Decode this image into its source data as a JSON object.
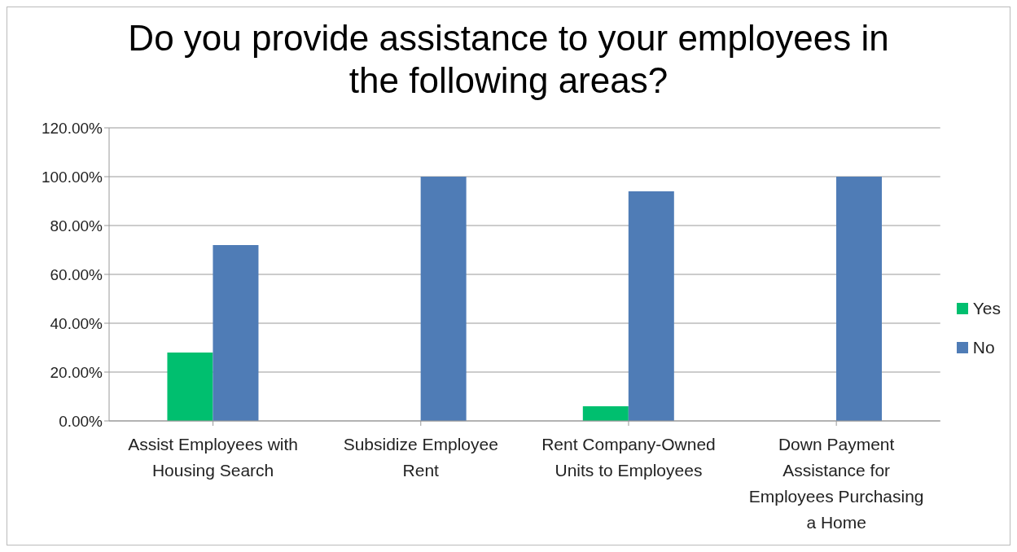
{
  "chart_data": {
    "type": "bar",
    "title": "Do you provide assistance to your employees in the following areas?",
    "categories": [
      "Assist Employees with Housing Search",
      "Subsidize Employee Rent",
      "Rent Company-Owned Units to Employees",
      "Down Payment Assistance for Employees Purchasing a Home"
    ],
    "series": [
      {
        "name": "Yes",
        "color": "#00bf6f",
        "values": [
          28,
          0,
          6,
          0
        ]
      },
      {
        "name": "No",
        "color": "#4f7cb6",
        "values": [
          72,
          100,
          94,
          100
        ]
      }
    ],
    "ylim": [
      0,
      120
    ],
    "yticks": [
      {
        "value": 0,
        "label": "0.00%"
      },
      {
        "value": 20,
        "label": "20.00%"
      },
      {
        "value": 40,
        "label": "40.00%"
      },
      {
        "value": 60,
        "label": "60.00%"
      },
      {
        "value": 80,
        "label": "80.00%"
      },
      {
        "value": 100,
        "label": "100.00%"
      },
      {
        "value": 120,
        "label": "120.00%"
      }
    ],
    "grid": "y",
    "legend": "right"
  }
}
